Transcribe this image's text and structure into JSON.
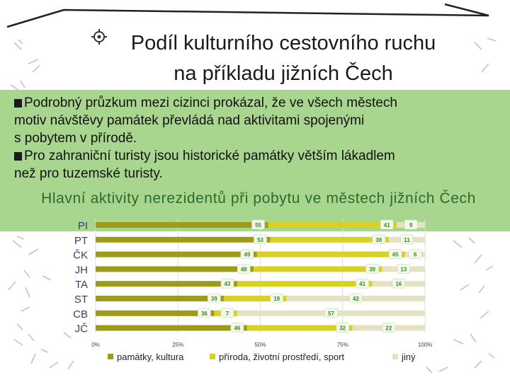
{
  "title": {
    "line1": "Podíl kulturního cestovního ruchu",
    "line2": "na příkladu jižních Čech"
  },
  "bullets": [
    {
      "icon": "checkbox-bullet-icon",
      "line1": "Podrobný průzkum mezi cizinci prokázal, že ve všech městech",
      "line2": "motiv návštěvy památek převládá nad aktivitami spojenými",
      "line3": "s pobytem v přírodě."
    },
    {
      "icon": "checkbox-bullet-icon",
      "line1": "Pro zahraniční turisty jsou historické památky větším lákadlem",
      "line2": "než pro tuzemské turisty."
    }
  ],
  "chart_data": {
    "type": "bar",
    "orientation": "horizontal",
    "stacked": "percent",
    "title": "Hlavní aktivity nerezidentů při pobytu ve městech jižních Čech",
    "categories": [
      "PI",
      "PT",
      "ČK",
      "JH",
      "TA",
      "ST",
      "CB",
      "JČ"
    ],
    "series": [
      {
        "name": "památky, kultura",
        "color": "#9e9b1b",
        "values": [
          55,
          53,
          49,
          48,
          43,
          39,
          36,
          46
        ]
      },
      {
        "name": "příroda, životní prostředí, sport",
        "color": "#d6d124",
        "values": [
          41,
          36,
          45,
          39,
          41,
          19,
          7,
          32
        ]
      },
      {
        "name": "jiný",
        "color": "#e4e1c4",
        "values": [
          9,
          11,
          6,
          13,
          16,
          42,
          57,
          22
        ]
      }
    ],
    "xlim": [
      0,
      100
    ],
    "xticks": [
      "0%",
      "25%",
      "50%",
      "75%",
      "100%"
    ],
    "grid": true,
    "legend": "bottom"
  },
  "colors": {
    "panel": "#a9d68f",
    "subtitle": "#2d6a2d",
    "label_bg": "#f3f8ec",
    "label_text": "#3c8a1e"
  }
}
